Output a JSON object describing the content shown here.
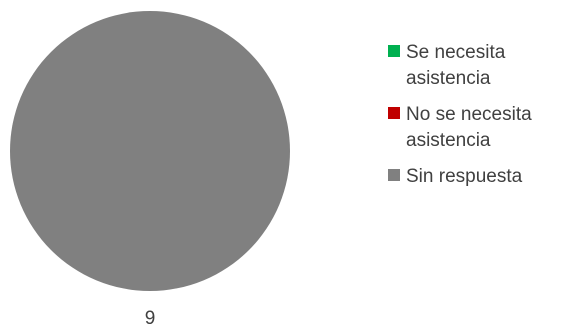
{
  "chart_data": {
    "type": "pie",
    "categories": [
      "Se necesita asistencia",
      "No se necesita asistencia",
      "Sin respuesta"
    ],
    "values": [
      0,
      0,
      9
    ],
    "colors": [
      "#00b050",
      "#c00000",
      "#808080"
    ],
    "data_labels": [
      "9"
    ],
    "legend_position": "right"
  }
}
